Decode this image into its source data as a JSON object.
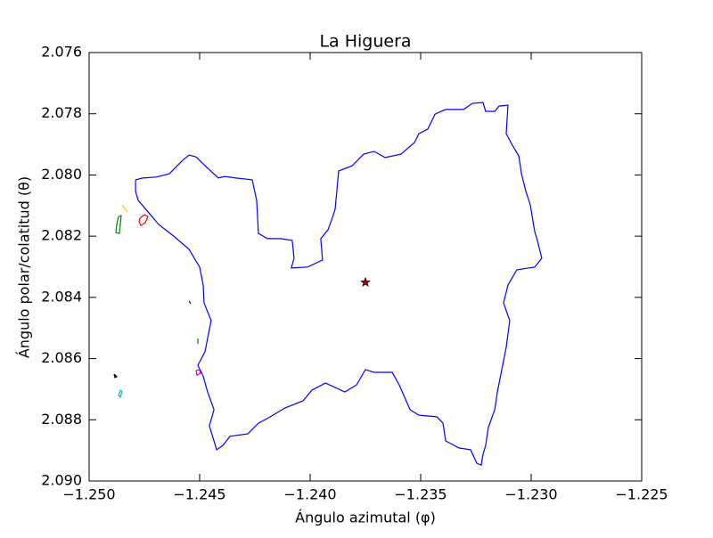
{
  "chart_data": {
    "type": "line",
    "title": "La Higuera",
    "xlabel": "Ángulo azimutal (φ)",
    "ylabel": "Ángulo polar/colatitud (θ)",
    "xlim": [
      -1.25,
      -1.225
    ],
    "xticks": [
      {
        "value": -1.25,
        "label": "−1.250"
      },
      {
        "value": -1.245,
        "label": "−1.245"
      },
      {
        "value": -1.24,
        "label": "−1.240"
      },
      {
        "value": -1.235,
        "label": "−1.235"
      },
      {
        "value": -1.23,
        "label": "−1.230"
      },
      {
        "value": -1.225,
        "label": "−1.225"
      }
    ],
    "ylim": [
      2.076,
      2.09
    ],
    "invert_y": true,
    "yticks": [
      2.076,
      2.078,
      {
        "value": 2.08,
        "label": "2.080"
      },
      2.082,
      2.084,
      2.086,
      2.088,
      {
        "value": 2.09,
        "label": "2.090"
      }
    ],
    "grid": false,
    "series": [
      {
        "color": "#0000ff",
        "x": [
          -1.2479,
          -1.24758,
          -1.24698,
          -1.24637,
          -1.24577,
          -1.24548,
          -1.24516,
          -1.24468,
          -1.24415,
          -1.24387,
          -1.24335,
          -1.24262,
          -1.24242,
          -1.24234,
          -1.24194,
          -1.24133,
          -1.24081,
          -1.24073,
          -1.24085,
          -1.24012,
          -1.23944,
          -1.23952,
          -1.23919,
          -1.23903,
          -1.23887,
          -1.23871,
          -1.2381,
          -1.23758,
          -1.2371,
          -1.23661,
          -1.23589,
          -1.23528,
          -1.23508,
          -1.23468,
          -1.23435,
          -1.23387,
          -1.23306,
          -1.23266,
          -1.23218,
          -1.23206,
          -1.23165,
          -1.23145,
          -1.23105,
          -1.23113,
          -1.23085,
          -1.23056,
          -1.23044,
          -1.23024,
          -1.23004,
          -1.22984,
          -1.22972,
          -1.22952,
          -1.22984,
          -1.23065,
          -1.23105,
          -1.23125,
          -1.23097,
          -1.23113,
          -1.23137,
          -1.23153,
          -1.23165,
          -1.23194,
          -1.23206,
          -1.23218,
          -1.23226,
          -1.23246,
          -1.23274,
          -1.23327,
          -1.23387,
          -1.23399,
          -1.23427,
          -1.23508,
          -1.23548,
          -1.23597,
          -1.23629,
          -1.2371,
          -1.2375,
          -1.2379,
          -1.23843,
          -1.23931,
          -1.23992,
          -1.24032,
          -1.24113,
          -1.24194,
          -1.24234,
          -1.24282,
          -1.24363,
          -1.24395,
          -1.24423,
          -1.24456,
          -1.24435,
          -1.24464,
          -1.24484,
          -1.24508,
          -1.24476,
          -1.24448,
          -1.2448,
          -1.24484,
          -1.245,
          -1.24548,
          -1.24617,
          -1.24685,
          -1.24726,
          -1.24778,
          -1.2479,
          -1.2479
        ],
        "y": [
          2.08016,
          2.0801,
          2.08007,
          2.07996,
          2.07952,
          2.07935,
          2.07941,
          2.07975,
          2.0801,
          2.08005,
          2.0801,
          2.08016,
          2.08083,
          2.08191,
          2.08208,
          2.08208,
          2.08214,
          2.08272,
          2.08304,
          2.08301,
          2.08278,
          2.08208,
          2.08179,
          2.08147,
          2.08112,
          2.07987,
          2.0797,
          2.07932,
          2.07923,
          2.07943,
          2.07932,
          2.07894,
          2.07865,
          2.0785,
          2.07801,
          2.07786,
          2.07786,
          2.07766,
          2.07763,
          2.07792,
          2.07792,
          2.07775,
          2.07772,
          2.07865,
          2.07903,
          2.07938,
          2.07996,
          2.08054,
          2.08098,
          2.08185,
          2.08214,
          2.08272,
          2.08301,
          2.0831,
          2.0836,
          2.08418,
          2.08476,
          2.08563,
          2.08651,
          2.08709,
          2.08767,
          2.08825,
          2.08884,
          2.08913,
          2.08948,
          2.08942,
          2.08898,
          2.08892,
          2.08869,
          2.08811,
          2.0879,
          2.08785,
          2.08767,
          2.08686,
          2.08645,
          2.08645,
          2.08636,
          2.08686,
          2.08709,
          2.0868,
          2.08703,
          2.08738,
          2.08761,
          2.08796,
          2.08811,
          2.08846,
          2.08854,
          2.08884,
          2.08898,
          2.0882,
          2.08767,
          2.08709,
          2.08657,
          2.08622,
          2.08578,
          2.08476,
          2.08418,
          2.0836,
          2.08301,
          2.08243,
          2.082,
          2.08162,
          2.08127,
          2.08083,
          2.08054,
          2.08016
        ]
      },
      {
        "color": "#ff0000",
        "x": [
          -1.2477,
          -1.2475,
          -1.24734,
          -1.24746,
          -1.24766,
          -1.24774,
          -1.2477
        ],
        "y": [
          2.08141,
          2.0813,
          2.08136,
          2.08156,
          2.08165,
          2.08153,
          2.08141
        ]
      },
      {
        "color": "#008000",
        "x": [
          -1.24867,
          -1.24855,
          -1.24859,
          -1.24863,
          -1.24879,
          -1.24875,
          -1.24867
        ],
        "y": [
          2.08136,
          2.08133,
          2.08162,
          2.08191,
          2.08188,
          2.08162,
          2.08136
        ]
      },
      {
        "color": "#ffcc00",
        "x": [
          -1.24851,
          -1.24839,
          -1.24827
        ],
        "y": [
          2.08098,
          2.08109,
          2.08121
        ]
      },
      {
        "color": "#000000",
        "x": [
          -1.24887,
          -1.24875,
          -1.24883,
          -1.24887
        ],
        "y": [
          2.08651,
          2.08659,
          2.08662,
          2.08651
        ]
      },
      {
        "color": "#00bfbf",
        "x": [
          -1.24859,
          -1.24851,
          -1.24859,
          -1.24867,
          -1.24859
        ],
        "y": [
          2.08703,
          2.08709,
          2.08726,
          2.08721,
          2.08703
        ]
      },
      {
        "color": "#bf00bf",
        "x": [
          -1.24516,
          -1.245,
          -1.24496,
          -1.24512,
          -1.24516
        ],
        "y": [
          2.08639,
          2.08636,
          2.08648,
          2.08654,
          2.08639
        ]
      },
      {
        "color": "#0000ff",
        "x": [
          -1.24548,
          -1.2454
        ],
        "y": [
          2.08412,
          2.08421
        ]
      },
      {
        "color": "#008000",
        "x": [
          -1.24508,
          -1.24508
        ],
        "y": [
          2.08534,
          2.08552
        ]
      }
    ],
    "points": {
      "color": "#bf0000",
      "marker": "star",
      "x": [
        -1.2375
      ],
      "y": [
        2.08351
      ]
    }
  }
}
